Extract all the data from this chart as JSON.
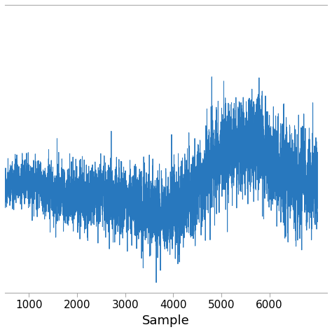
{
  "title": "",
  "xlabel": "Sample",
  "ylabel": "",
  "xlim": [
    500,
    7200
  ],
  "xticks": [
    1000,
    2000,
    3000,
    4000,
    5000,
    6000
  ],
  "line_color": "#2878BE",
  "linewidth": 0.7,
  "background_color": "#ffffff",
  "n_samples": 7000,
  "seed": 7
}
